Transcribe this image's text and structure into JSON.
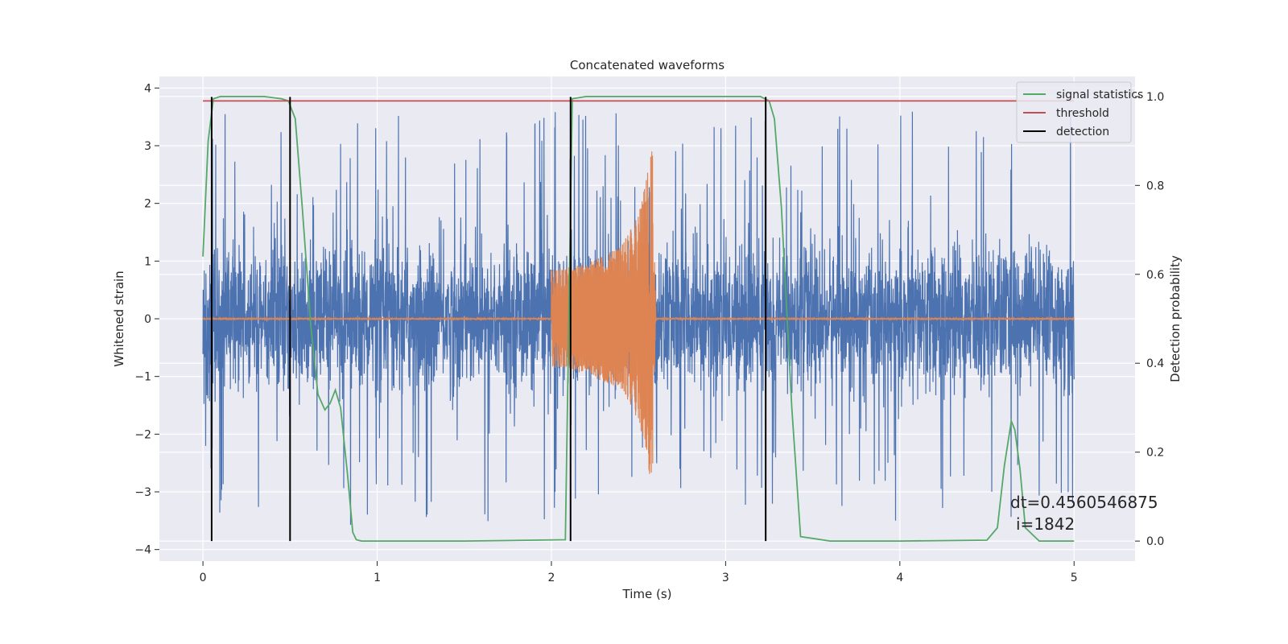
{
  "chart_data": {
    "type": "line",
    "title": "Concatenated waveforms",
    "xlabel": "Time (s)",
    "ylabel": "Whitened strain",
    "y2label": "Detection probability",
    "xlim": [
      -0.25,
      5.35
    ],
    "ylim": [
      -4.2,
      4.2
    ],
    "y2lim": [
      -0.045,
      1.045
    ],
    "xticks": [
      0,
      1,
      2,
      3,
      4,
      5
    ],
    "xtick_labels": [
      "0",
      "1",
      "2",
      "3",
      "4",
      "5"
    ],
    "yticks": [
      4,
      3,
      2,
      1,
      0,
      -1,
      -2,
      -3,
      -4
    ],
    "ytick_labels": [
      "4",
      "3",
      "2",
      "1",
      "0",
      "−1",
      "−2",
      "−3",
      "−4"
    ],
    "y2ticks": [
      1.0,
      0.8,
      0.6,
      0.4,
      0.2,
      0.0
    ],
    "y2tick_labels": [
      "1.0",
      "0.8",
      "0.6",
      "0.4",
      "0.2",
      "0.0"
    ],
    "grid": true,
    "legend_position": "top-right",
    "legend": [
      "signal statistics",
      "threshold",
      "detection"
    ],
    "colors": {
      "noise": "#4c72b0",
      "injection": "#dd8452",
      "signal_statistics": "#55a868",
      "threshold": "#c44e52",
      "detection": "#000000",
      "background": "#eaeaf2",
      "grid": "#ffffff"
    },
    "noise": {
      "x_range": [
        0,
        5
      ],
      "samples": 4096,
      "amplitude_envelope": 1.0,
      "peak_max": 3.8,
      "peak_min": -3.8
    },
    "injection": {
      "start": 2.0,
      "merger": 2.58,
      "envelope_x": [
        2.0,
        2.2,
        2.4,
        2.5,
        2.55,
        2.58
      ],
      "envelope_y": [
        0.85,
        0.95,
        1.25,
        1.8,
        2.5,
        2.95
      ]
    },
    "series": [
      {
        "name": "signal statistics",
        "axis": "right",
        "x": [
          0.0,
          0.03,
          0.06,
          0.1,
          0.2,
          0.35,
          0.45,
          0.49,
          0.53,
          0.57,
          0.62,
          0.66,
          0.7,
          0.73,
          0.76,
          0.79,
          0.83,
          0.86,
          0.88,
          0.91,
          1.0,
          1.5,
          2.08,
          2.1,
          2.12,
          2.2,
          2.5,
          3.0,
          3.2,
          3.25,
          3.28,
          3.32,
          3.38,
          3.43,
          3.6,
          4.0,
          4.5,
          4.56,
          4.6,
          4.64,
          4.66,
          4.69,
          4.72,
          4.8,
          5.0
        ],
        "y": [
          0.64,
          0.9,
          0.995,
          1.0,
          1.0,
          1.0,
          0.995,
          0.99,
          0.95,
          0.75,
          0.48,
          0.33,
          0.295,
          0.31,
          0.34,
          0.3,
          0.15,
          0.02,
          0.003,
          0.0,
          0.0,
          0.0,
          0.003,
          0.5,
          0.995,
          1.0,
          1.0,
          1.0,
          1.0,
          0.99,
          0.95,
          0.75,
          0.3,
          0.01,
          0.0,
          0.0,
          0.002,
          0.03,
          0.17,
          0.27,
          0.25,
          0.16,
          0.03,
          0.0,
          0.0
        ]
      },
      {
        "name": "threshold",
        "axis": "right",
        "x": [
          0,
          5
        ],
        "y": [
          0.99,
          0.99
        ]
      }
    ],
    "detections": [
      0.05,
      0.5,
      2.11,
      3.23
    ],
    "annotation": {
      "line1": "dt=0.4560546875",
      "line2": "i=1842",
      "x": 4.5,
      "y": -3.0
    }
  }
}
